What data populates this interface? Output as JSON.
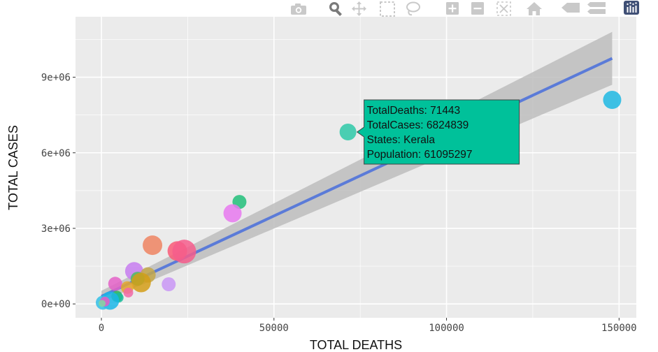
{
  "modebar": {
    "buttons": [
      {
        "name": "camera-icon",
        "title": "Download plot as a png"
      },
      {
        "name": "zoom-icon",
        "title": "Zoom"
      },
      {
        "name": "pan-icon",
        "title": "Pan"
      },
      {
        "name": "box-select-icon",
        "title": "Box Select"
      },
      {
        "name": "lasso-select-icon",
        "title": "Lasso Select"
      },
      {
        "name": "zoom-in-icon",
        "title": "Zoom in"
      },
      {
        "name": "zoom-out-icon",
        "title": "Zoom out"
      },
      {
        "name": "autoscale-icon",
        "title": "Autoscale"
      },
      {
        "name": "reset-axes-icon",
        "title": "Reset axes"
      },
      {
        "name": "spike-lines-icon",
        "title": "Toggle Spike Lines"
      },
      {
        "name": "compare-hover-icon",
        "title": "Compare data on hover"
      },
      {
        "name": "plotly-logo-icon",
        "title": "Produced with Plotly"
      }
    ],
    "active": "zoom-icon",
    "colors": {
      "inactive": "#c9c9c9",
      "active": "#7a7a7a",
      "logo": "#3f4f75"
    }
  },
  "chart_data": {
    "type": "scatter",
    "xlabel": "TOTAL DEATHS",
    "ylabel": "TOTAL CASES",
    "xlim": [
      -7500,
      155000
    ],
    "ylim": [
      -550000,
      11400000
    ],
    "xticks": [
      0,
      50000,
      100000,
      150000
    ],
    "xtick_labels": [
      "0",
      "50000",
      "100000",
      "150000"
    ],
    "yticks": [
      0,
      3000000,
      6000000,
      9000000
    ],
    "ytick_labels": [
      "0e+00",
      "3e+06",
      "6e+06",
      "9e+06"
    ],
    "grid": true,
    "colors": {
      "panel": "#ebebeb",
      "grid": "#ffffff",
      "fit_line": "#5b7bd8",
      "band": "#bdbdbd"
    },
    "points": [
      {
        "x": 148000,
        "y": 8100000,
        "r": 13,
        "color": "#1fb8e3"
      },
      {
        "x": 71443,
        "y": 6824839,
        "r": 12,
        "color": "#2ec9a8"
      },
      {
        "x": 40000,
        "y": 4050000,
        "r": 10,
        "color": "#22c07a"
      },
      {
        "x": 38000,
        "y": 3600000,
        "r": 13,
        "color": "#e879f0"
      },
      {
        "x": 14800,
        "y": 2330000,
        "r": 14,
        "color": "#ef8461"
      },
      {
        "x": 22000,
        "y": 2100000,
        "r": 14,
        "color": "#fa5a78"
      },
      {
        "x": 24000,
        "y": 2080000,
        "r": 17,
        "color": "#f65d8c"
      },
      {
        "x": 9500,
        "y": 1300000,
        "r": 13,
        "color": "#c77cf0"
      },
      {
        "x": 13500,
        "y": 1150000,
        "r": 11,
        "color": "#c4a84a"
      },
      {
        "x": 10500,
        "y": 1000000,
        "r": 10,
        "color": "#4dbd5f"
      },
      {
        "x": 11500,
        "y": 850000,
        "r": 14,
        "color": "#d39e17"
      },
      {
        "x": 19500,
        "y": 780000,
        "r": 10,
        "color": "#c996f6"
      },
      {
        "x": 4000,
        "y": 800000,
        "r": 10,
        "color": "#e462c8"
      },
      {
        "x": 7500,
        "y": 650000,
        "r": 9,
        "color": "#e8a82b"
      },
      {
        "x": 7800,
        "y": 450000,
        "r": 7,
        "color": "#f068a8"
      },
      {
        "x": 4500,
        "y": 300000,
        "r": 8,
        "color": "#2fb552"
      },
      {
        "x": 5000,
        "y": 250000,
        "r": 7,
        "color": "#18bc9c"
      },
      {
        "x": 2500,
        "y": 130000,
        "r": 13,
        "color": "#1ab6e8"
      },
      {
        "x": 400,
        "y": 50000,
        "r": 10,
        "color": "#33c0e8"
      },
      {
        "x": 1000,
        "y": 90000,
        "r": 7,
        "color": "#e95ac4"
      },
      {
        "x": 200,
        "y": 20000,
        "r": 5,
        "color": "#7fd8a2"
      }
    ],
    "fit": {
      "x": [
        0,
        148000
      ],
      "y": [
        300000,
        9750000
      ]
    },
    "band": {
      "x": [
        0,
        148000
      ],
      "upper": [
        520000,
        10800000
      ],
      "lower": [
        80000,
        8700000
      ]
    },
    "tooltip": {
      "point_index": 1,
      "background": "#00c19a",
      "lines": [
        "TotalDeaths:  71443",
        "TotalCases: 6824839",
        "States: Kerala",
        "Population:  61095297"
      ]
    }
  }
}
